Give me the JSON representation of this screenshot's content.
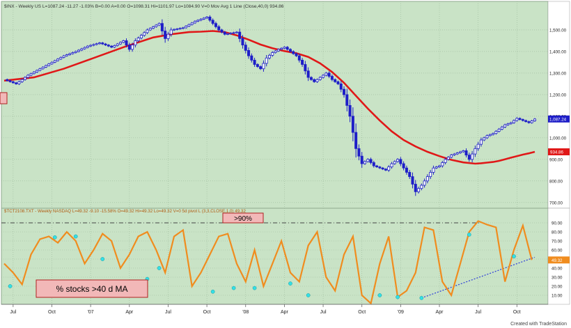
{
  "colors": {
    "panel_bg": "#c9e3c6",
    "grid": "#9bb89a",
    "candle_up": "#1e1ec8",
    "candle_down": "#1e1ec8",
    "moving_average": "#e01818",
    "oscillator": "#f08c1e",
    "pivot_marker": "#33e0e6",
    "trendline": "#2a3ad8",
    "label_box": "#f2b8b8",
    "label_box_border": "#b02020"
  },
  "header": {
    "price_header": "$INX - Weekly  US  L=1087.24  -11.27  -1.03%  B=0.00  A=0.00  O=1098.31  Hi=1101.97  Lo=1084.90  V=0  Mov Avg 1 Line (Close,40,0)  934.86",
    "osc_header": "$TCT2108.TXT - Weekly  NASDAQ  L=49.32  -9.10  -15.58%  O=49.32  Hi=49.32  Lo=49.32  V=0  5d pivot L (3,3,CLOSE,1,0)  49.32"
  },
  "annotations": {
    "box_90": ">90%",
    "box_stocks": "% stocks >40 d MA",
    "watermark": "Created with TradeStation"
  },
  "chart_data": [
    {
      "type": "candlestick",
      "title": "$INX - Weekly",
      "x_tick_labels": [
        "Jul",
        "Oct",
        "'07",
        "Apr",
        "Jul",
        "Oct",
        "'08",
        "Apr",
        "Jul",
        "Oct",
        "'09",
        "Apr",
        "Jul",
        "Oct"
      ],
      "x_tick_week_index": [
        3,
        16,
        29,
        42,
        55,
        68,
        81,
        94,
        107,
        120,
        133,
        146,
        159,
        172
      ],
      "ylim": [
        680,
        1600
      ],
      "y_ticks": [
        700,
        800,
        900,
        1000,
        1100,
        1200,
        1300,
        1400,
        1500
      ],
      "y_tick_labels": [
        "700.00",
        "800.00",
        "900.00",
        "1,000.00",
        "1,100.00",
        "1,200.00",
        "1,300.00",
        "1,400.00",
        "1,500.00"
      ],
      "last_close": 1087.24,
      "last_close_label": "1,087.24",
      "series": [
        {
          "name": "$INX",
          "kind": "close",
          "x": [
            0,
            4,
            8,
            12,
            16,
            20,
            24,
            28,
            32,
            36,
            40,
            42,
            44,
            48,
            52,
            54,
            56,
            60,
            64,
            68,
            70,
            72,
            74,
            78,
            80,
            82,
            84,
            86,
            88,
            90,
            92,
            94,
            96,
            98,
            100,
            102,
            104,
            106,
            108,
            110,
            112,
            114,
            116,
            118,
            120,
            122,
            124,
            126,
            128,
            130,
            132,
            134,
            136,
            138,
            140,
            142,
            144,
            146,
            148,
            150,
            152,
            154,
            156,
            158,
            160,
            162,
            164,
            166,
            168,
            170,
            172,
            174,
            176,
            178
          ],
          "values": [
            1270,
            1250,
            1290,
            1320,
            1350,
            1380,
            1400,
            1425,
            1440,
            1420,
            1450,
            1410,
            1450,
            1500,
            1530,
            1460,
            1500,
            1510,
            1540,
            1560,
            1530,
            1500,
            1480,
            1490,
            1430,
            1380,
            1340,
            1320,
            1370,
            1395,
            1410,
            1420,
            1400,
            1380,
            1340,
            1280,
            1260,
            1280,
            1300,
            1270,
            1250,
            1200,
            1100,
            950,
            880,
            900,
            870,
            860,
            850,
            880,
            900,
            860,
            820,
            750,
            780,
            820,
            860,
            870,
            900,
            920,
            930,
            940,
            900,
            950,
            990,
            1010,
            1020,
            1040,
            1060,
            1070,
            1090,
            1080,
            1070,
            1087
          ]
        },
        {
          "name": "Mov Avg 1 Line (Close,40,0)",
          "kind": "line",
          "x": [
            0,
            10,
            20,
            30,
            40,
            50,
            56,
            62,
            66,
            70,
            74,
            78,
            82,
            86,
            90,
            94,
            98,
            102,
            106,
            110,
            114,
            118,
            122,
            126,
            130,
            134,
            138,
            142,
            146,
            150,
            154,
            158,
            160,
            162,
            164,
            166,
            168,
            170,
            172,
            174,
            176,
            178
          ],
          "values": [
            1265,
            1280,
            1320,
            1370,
            1420,
            1465,
            1480,
            1490,
            1492,
            1495,
            1490,
            1475,
            1455,
            1432,
            1415,
            1402,
            1392,
            1375,
            1345,
            1305,
            1255,
            1195,
            1135,
            1080,
            1030,
            990,
            960,
            935,
            915,
            898,
            886,
            880,
            882,
            885,
            888,
            893,
            900,
            908,
            915,
            922,
            928,
            935
          ]
        }
      ],
      "right_labels": {
        "ma_value": "934.86"
      }
    },
    {
      "type": "line",
      "title": "$TCT2108.TXT - Weekly",
      "ylim": [
        0,
        100
      ],
      "y_ticks": [
        10,
        20,
        30,
        40,
        50,
        60,
        70,
        80,
        90
      ],
      "y_tick_labels": [
        "10.00",
        "20.00",
        "30.00",
        "40.00",
        "50.00",
        "60.00",
        "70.00",
        "80.00",
        "90.00"
      ],
      "last_value_label": "49.32",
      "reference_line": {
        "value": 90
      },
      "series": [
        {
          "name": "$TCT2108.TXT",
          "x": [
            0,
            3,
            6,
            9,
            12,
            15,
            18,
            21,
            24,
            27,
            30,
            33,
            36,
            39,
            42,
            45,
            48,
            51,
            54,
            57,
            60,
            63,
            66,
            69,
            72,
            75,
            78,
            81,
            84,
            87,
            90,
            93,
            96,
            99,
            102,
            105,
            108,
            111,
            114,
            117,
            120,
            123,
            126,
            129,
            132,
            135,
            138,
            141,
            144,
            147,
            150,
            153,
            156,
            159,
            162,
            165,
            168,
            171,
            174,
            177
          ],
          "values": [
            45,
            35,
            22,
            55,
            72,
            75,
            68,
            80,
            70,
            45,
            60,
            78,
            70,
            40,
            55,
            75,
            80,
            60,
            35,
            75,
            82,
            20,
            35,
            55,
            75,
            78,
            45,
            25,
            60,
            20,
            45,
            70,
            35,
            25,
            65,
            80,
            30,
            15,
            55,
            75,
            10,
            1,
            45,
            75,
            8,
            15,
            35,
            85,
            82,
            25,
            10,
            45,
            80,
            92,
            88,
            85,
            25,
            60,
            87,
            49
          ]
        },
        {
          "name": "5d pivot L (3,3,CLOSE,1,0)",
          "kind": "markers",
          "x": [
            2,
            17,
            24,
            33,
            48,
            52,
            70,
            77,
            84,
            96,
            102,
            126,
            132,
            140,
            156,
            171
          ],
          "values": [
            20,
            74,
            75,
            50,
            28,
            40,
            14,
            18,
            18,
            23,
            10,
            10,
            8,
            7,
            77,
            53
          ]
        },
        {
          "name": "trendline",
          "kind": "dotted-line",
          "x": [
            140,
            178
          ],
          "values": [
            7,
            52
          ]
        }
      ]
    }
  ]
}
